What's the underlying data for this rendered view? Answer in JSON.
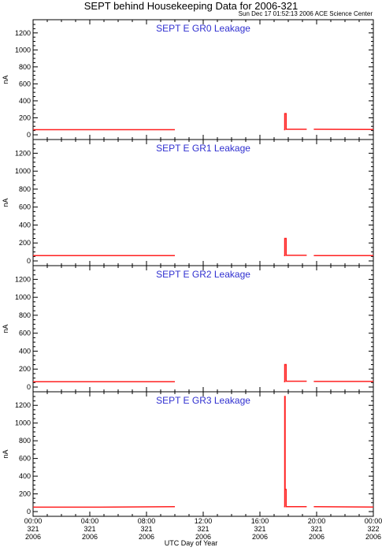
{
  "title": "SEPT behind Housekeeping Data for 2006-321",
  "timestamp": "Sun Dec 17 01:52:13 2006 ACE Science Center",
  "xlabel": "UTC Day of Year",
  "colors": {
    "data": "#ff2020",
    "title": "#3030d0"
  },
  "chart_data": [
    {
      "type": "line",
      "title": "SEPT E GR0 Leakage",
      "ylabel": "nA",
      "ylim": [
        0,
        1300
      ],
      "yticks": [
        0,
        200,
        400,
        600,
        800,
        1000,
        1200
      ],
      "xlim": [
        0,
        24
      ],
      "segments": [
        [
          [
            0,
            60
          ],
          [
            10,
            60
          ]
        ],
        [
          [
            17.7,
            60
          ],
          [
            17.75,
            60
          ],
          [
            17.75,
            250
          ],
          [
            17.85,
            250
          ],
          [
            17.85,
            65
          ],
          [
            19.3,
            65
          ]
        ],
        [
          [
            19.8,
            65
          ],
          [
            24,
            62
          ]
        ]
      ]
    },
    {
      "type": "line",
      "title": "SEPT E GR1 Leakage",
      "ylabel": "nA",
      "ylim": [
        0,
        1300
      ],
      "yticks": [
        0,
        200,
        400,
        600,
        800,
        1000,
        1200
      ],
      "xlim": [
        0,
        24
      ],
      "segments": [
        [
          [
            0,
            60
          ],
          [
            10,
            60
          ]
        ],
        [
          [
            17.7,
            60
          ],
          [
            17.75,
            60
          ],
          [
            17.75,
            250
          ],
          [
            17.85,
            250
          ],
          [
            17.85,
            62
          ],
          [
            19.3,
            62
          ]
        ],
        [
          [
            19.8,
            60
          ],
          [
            24,
            60
          ]
        ]
      ]
    },
    {
      "type": "line",
      "title": "SEPT E GR2 Leakage",
      "ylabel": "nA",
      "ylim": [
        0,
        1300
      ],
      "yticks": [
        0,
        200,
        400,
        600,
        800,
        1000,
        1200
      ],
      "xlim": [
        0,
        24
      ],
      "segments": [
        [
          [
            0,
            60
          ],
          [
            10,
            60
          ]
        ],
        [
          [
            17.7,
            60
          ],
          [
            17.75,
            60
          ],
          [
            17.75,
            250
          ],
          [
            17.85,
            250
          ],
          [
            17.85,
            65
          ],
          [
            19.3,
            65
          ]
        ],
        [
          [
            19.8,
            62
          ],
          [
            24,
            62
          ]
        ]
      ]
    },
    {
      "type": "line",
      "title": "SEPT E GR3 Leakage",
      "ylabel": "nA",
      "ylim": [
        0,
        1300
      ],
      "yticks": [
        0,
        200,
        400,
        600,
        800,
        1000,
        1200
      ],
      "xlim": [
        0,
        24
      ],
      "segments": [
        [
          [
            0,
            50
          ],
          [
            4,
            50
          ],
          [
            10,
            55
          ]
        ],
        [
          [
            17.7,
            55
          ],
          [
            17.75,
            55
          ],
          [
            17.75,
            1300
          ],
          [
            17.78,
            1300
          ],
          [
            17.78,
            250
          ],
          [
            17.85,
            250
          ],
          [
            17.85,
            55
          ],
          [
            19.3,
            55
          ]
        ],
        [
          [
            19.8,
            55
          ],
          [
            24,
            52
          ]
        ]
      ]
    }
  ],
  "xticks": [
    {
      "x": 0,
      "lines": [
        "00:00",
        "321",
        "2006"
      ]
    },
    {
      "x": 4,
      "lines": [
        "04:00",
        "321",
        "2006"
      ]
    },
    {
      "x": 8,
      "lines": [
        "08:00",
        "321",
        "2006"
      ]
    },
    {
      "x": 12,
      "lines": [
        "12:00",
        "321",
        "2006"
      ]
    },
    {
      "x": 16,
      "lines": [
        "16:00",
        "321",
        "2006"
      ]
    },
    {
      "x": 20,
      "lines": [
        "20:00",
        "321",
        "2006"
      ]
    },
    {
      "x": 24,
      "lines": [
        "00:00",
        "322",
        "2006"
      ]
    }
  ]
}
